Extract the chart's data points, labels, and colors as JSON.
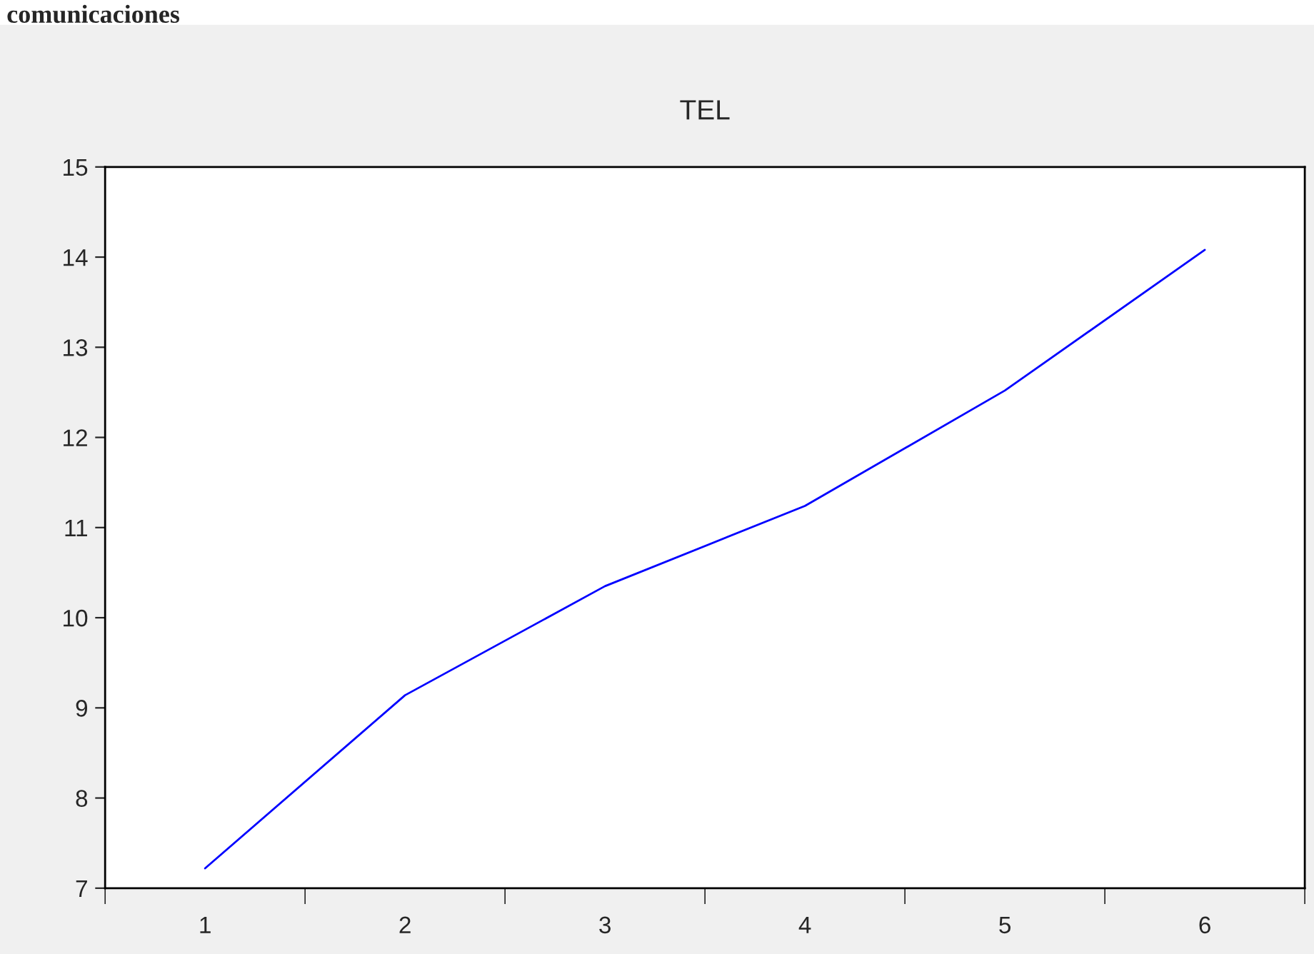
{
  "chart_data": {
    "type": "line",
    "title": "TEL",
    "annotations": [
      "comunicaciones"
    ],
    "categories": [
      "1",
      "2",
      "3",
      "4",
      "5",
      "6"
    ],
    "series": [
      {
        "color": "#0000ff",
        "values": [
          7.22,
          9.14,
          10.35,
          11.24,
          12.52,
          14.08
        ]
      }
    ],
    "ylim": [
      7,
      15
    ],
    "yticks": [
      7,
      8,
      9,
      10,
      11,
      12,
      13,
      14,
      15
    ],
    "grid": false,
    "legend": false
  }
}
